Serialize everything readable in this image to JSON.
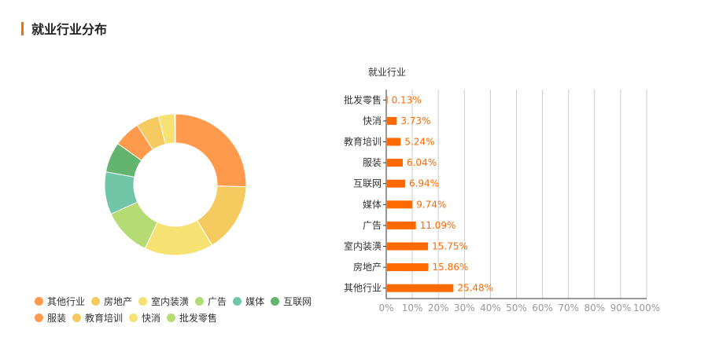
{
  "section": {
    "title": "就业行业分布"
  },
  "colors": {
    "accent": "#ff6a00",
    "bar": "#ff6a00",
    "pie": [
      "#ff9a4d",
      "#f5cb5f",
      "#f6e272",
      "#b5dc74",
      "#72c6a8",
      "#62b46e",
      "#ff9a4d",
      "#f5cb5f",
      "#f6e272",
      "#b5dc74"
    ]
  },
  "chart_data": [
    {
      "type": "pie",
      "donut": true,
      "categories": [
        "其他行业",
        "房地产",
        "室内装潢",
        "广告",
        "媒体",
        "互联网",
        "服装",
        "教育培训",
        "快消",
        "批发零售"
      ],
      "values": [
        25.48,
        15.86,
        15.75,
        11.09,
        9.74,
        6.94,
        6.04,
        5.24,
        3.73,
        0.13
      ],
      "legend_position": "bottom"
    },
    {
      "type": "bar",
      "orientation": "horizontal",
      "ylabel": "就业行业",
      "categories": [
        "批发零售",
        "快消",
        "教育培训",
        "服装",
        "互联网",
        "媒体",
        "广告",
        "室内装潢",
        "房地产",
        "其他行业"
      ],
      "values": [
        0.13,
        3.73,
        5.24,
        6.04,
        6.94,
        9.74,
        11.09,
        15.75,
        15.86,
        25.48
      ],
      "value_labels": [
        "0.13%",
        "3.73%",
        "5.24%",
        "6.04%",
        "6.94%",
        "9.74%",
        "11.09%",
        "15.75%",
        "15.86%",
        "25.48%"
      ],
      "xlim": [
        0,
        100
      ],
      "x_ticks": [
        "0%",
        "10%",
        "20%",
        "30%",
        "40%",
        "50%",
        "60%",
        "70%",
        "80%",
        "90%",
        "100%"
      ],
      "grid": true
    }
  ]
}
